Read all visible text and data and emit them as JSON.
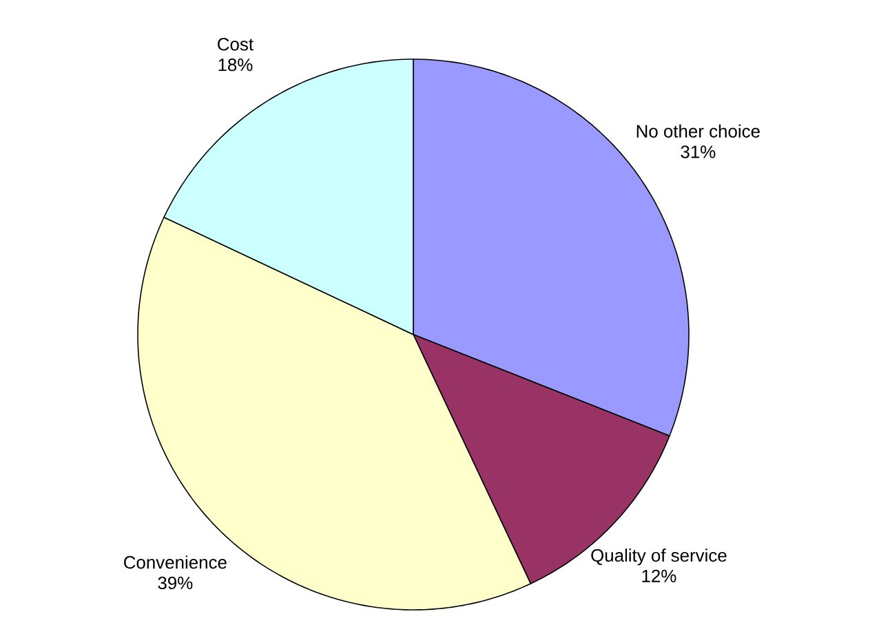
{
  "chart_data": {
    "type": "pie",
    "categories": [
      "No other choice",
      "Quality of service",
      "Convenience",
      "Cost"
    ],
    "values": [
      31,
      12,
      39,
      18
    ],
    "colors": [
      "#9999ff",
      "#993366",
      "#ffffcc",
      "#ccffff"
    ],
    "value_labels": [
      "31%",
      "12%",
      "39%",
      "18%"
    ]
  }
}
